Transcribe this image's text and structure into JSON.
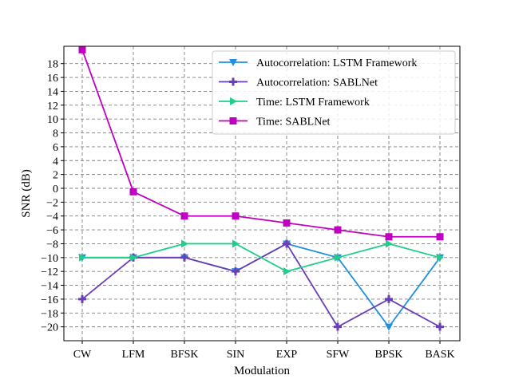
{
  "chart_data": {
    "type": "line",
    "title": "",
    "xlabel": "Modulation",
    "ylabel": "SNR (dB)",
    "categories": [
      "CW",
      "LFM",
      "BFSK",
      "SIN",
      "EXP",
      "SFW",
      "BPSK",
      "BASK"
    ],
    "yticks": [
      -20,
      -18,
      -16,
      -14,
      -12,
      -10,
      -8,
      -6,
      -4,
      -2,
      0,
      2,
      4,
      6,
      8,
      10,
      12,
      14,
      16,
      18
    ],
    "ylim": [
      -22,
      20.5
    ],
    "grid": true,
    "grid_style": "dashed",
    "legend_position": "top-right",
    "series": [
      {
        "name": "Autocorrelation: LSTM Framework",
        "color": "#1f8fe0",
        "marker": "triangle-down",
        "values": [
          -10,
          -10,
          -10,
          -12,
          -8,
          -10,
          -20,
          -10
        ]
      },
      {
        "name": "Autocorrelation: SABLNet",
        "color": "#6a3fb5",
        "marker": "plus",
        "values": [
          -16,
          -10,
          -10,
          -12,
          -8,
          -20,
          -16,
          -20
        ]
      },
      {
        "name": "Time: LSTM Framework",
        "color": "#1ecf8a",
        "marker": "triangle-right",
        "values": [
          -10,
          -10,
          -8,
          -8,
          -12,
          -10,
          -8,
          -10
        ]
      },
      {
        "name": "Time: SABLNet",
        "color": "#c000c0",
        "marker": "square",
        "values": [
          20,
          -0.5,
          -4,
          -4,
          -5,
          -6,
          -7,
          -7
        ]
      }
    ]
  }
}
